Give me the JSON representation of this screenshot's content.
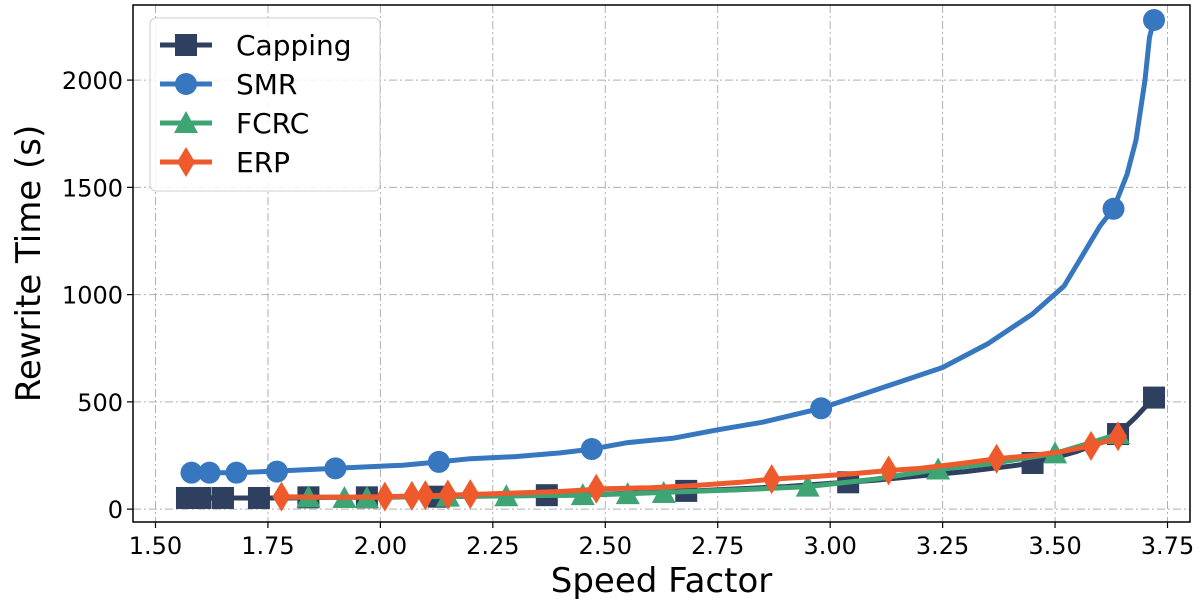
{
  "chart_data": {
    "type": "line",
    "title": "",
    "xlabel": "Speed Factor",
    "ylabel": "Rewrite Time (s)",
    "xlim": [
      1.5,
      3.75
    ],
    "ylim": [
      0,
      2300
    ],
    "xticks": [
      "1.50",
      "1.75",
      "2.00",
      "2.25",
      "2.50",
      "2.75",
      "3.00",
      "3.25",
      "3.50",
      "3.75"
    ],
    "yticks": [
      "0",
      "500",
      "1000",
      "1500",
      "2000"
    ],
    "grid": true,
    "legend_position": "upper-left",
    "series": [
      {
        "name": "Capping",
        "color": "#2f3f5f",
        "marker": "square",
        "line": [
          [
            1.57,
            52
          ],
          [
            1.62,
            52
          ],
          [
            1.7,
            52
          ],
          [
            1.8,
            52
          ],
          [
            1.9,
            55
          ],
          [
            2.0,
            55
          ],
          [
            2.1,
            58
          ],
          [
            2.2,
            60
          ],
          [
            2.3,
            62
          ],
          [
            2.4,
            65
          ],
          [
            2.5,
            70
          ],
          [
            2.6,
            78
          ],
          [
            2.7,
            85
          ],
          [
            2.8,
            95
          ],
          [
            2.9,
            105
          ],
          [
            3.0,
            120
          ],
          [
            3.1,
            135
          ],
          [
            3.2,
            155
          ],
          [
            3.3,
            175
          ],
          [
            3.4,
            200
          ],
          [
            3.45,
            215
          ],
          [
            3.5,
            240
          ],
          [
            3.55,
            270
          ],
          [
            3.6,
            310
          ],
          [
            3.64,
            350
          ],
          [
            3.68,
            430
          ],
          [
            3.72,
            520
          ]
        ],
        "points": [
          [
            1.57,
            52
          ],
          [
            1.6,
            52
          ],
          [
            1.65,
            52
          ],
          [
            1.73,
            52
          ],
          [
            1.84,
            55
          ],
          [
            1.97,
            55
          ],
          [
            2.13,
            58
          ],
          [
            2.37,
            65
          ],
          [
            2.68,
            85
          ],
          [
            3.04,
            125
          ],
          [
            3.45,
            215
          ],
          [
            3.64,
            350
          ],
          [
            3.72,
            520
          ]
        ]
      },
      {
        "name": "SMR",
        "color": "#3777c0",
        "marker": "circle",
        "line": [
          [
            1.58,
            170
          ],
          [
            1.68,
            170
          ],
          [
            1.78,
            178
          ],
          [
            1.85,
            185
          ],
          [
            1.95,
            195
          ],
          [
            2.0,
            200
          ],
          [
            2.05,
            205
          ],
          [
            2.13,
            220
          ],
          [
            2.2,
            235
          ],
          [
            2.3,
            245
          ],
          [
            2.4,
            262
          ],
          [
            2.47,
            280
          ],
          [
            2.55,
            310
          ],
          [
            2.65,
            330
          ],
          [
            2.75,
            370
          ],
          [
            2.85,
            405
          ],
          [
            2.92,
            440
          ],
          [
            2.98,
            470
          ],
          [
            3.05,
            520
          ],
          [
            3.15,
            590
          ],
          [
            3.25,
            660
          ],
          [
            3.35,
            770
          ],
          [
            3.45,
            910
          ],
          [
            3.52,
            1040
          ],
          [
            3.56,
            1180
          ],
          [
            3.6,
            1320
          ],
          [
            3.63,
            1400
          ],
          [
            3.66,
            1560
          ],
          [
            3.68,
            1720
          ],
          [
            3.7,
            2000
          ],
          [
            3.71,
            2200
          ],
          [
            3.72,
            2280
          ]
        ],
        "points": [
          [
            1.58,
            170
          ],
          [
            1.62,
            170
          ],
          [
            1.68,
            170
          ],
          [
            1.77,
            175
          ],
          [
            1.9,
            190
          ],
          [
            2.13,
            220
          ],
          [
            2.47,
            280
          ],
          [
            2.98,
            470
          ],
          [
            3.63,
            1400
          ],
          [
            3.72,
            2280
          ]
        ]
      },
      {
        "name": "FCRC",
        "color": "#3ea474",
        "marker": "triangle",
        "line": [
          [
            1.78,
            55
          ],
          [
            1.84,
            55
          ],
          [
            1.92,
            55
          ],
          [
            2.0,
            55
          ],
          [
            2.1,
            58
          ],
          [
            2.2,
            60
          ],
          [
            2.28,
            62
          ],
          [
            2.45,
            65
          ],
          [
            2.55,
            72
          ],
          [
            2.63,
            78
          ],
          [
            2.8,
            90
          ],
          [
            2.95,
            105
          ],
          [
            3.1,
            140
          ],
          [
            3.24,
            185
          ],
          [
            3.35,
            210
          ],
          [
            3.5,
            260
          ],
          [
            3.58,
            310
          ],
          [
            3.64,
            350
          ]
        ],
        "points": [
          [
            1.84,
            55
          ],
          [
            1.92,
            52
          ],
          [
            1.97,
            52
          ],
          [
            2.15,
            58
          ],
          [
            2.28,
            60
          ],
          [
            2.45,
            65
          ],
          [
            2.55,
            70
          ],
          [
            2.63,
            75
          ],
          [
            2.95,
            105
          ],
          [
            3.24,
            185
          ],
          [
            3.5,
            260
          ],
          [
            3.64,
            350
          ]
        ]
      },
      {
        "name": "ERP",
        "color": "#ee5a2c",
        "marker": "diamond",
        "line": [
          [
            1.78,
            58
          ],
          [
            1.9,
            55
          ],
          [
            2.0,
            58
          ],
          [
            2.1,
            62
          ],
          [
            2.2,
            68
          ],
          [
            2.3,
            75
          ],
          [
            2.4,
            82
          ],
          [
            2.5,
            95
          ],
          [
            2.6,
            100
          ],
          [
            2.7,
            110
          ],
          [
            2.8,
            125
          ],
          [
            2.87,
            140
          ],
          [
            2.95,
            150
          ],
          [
            3.05,
            165
          ],
          [
            3.13,
            180
          ],
          [
            3.2,
            190
          ],
          [
            3.3,
            215
          ],
          [
            3.37,
            235
          ],
          [
            3.45,
            250
          ],
          [
            3.52,
            270
          ],
          [
            3.58,
            295
          ],
          [
            3.62,
            320
          ],
          [
            3.64,
            340
          ]
        ],
        "points": [
          [
            1.78,
            58
          ],
          [
            2.01,
            58
          ],
          [
            2.07,
            62
          ],
          [
            2.1,
            65
          ],
          [
            2.15,
            68
          ],
          [
            2.2,
            70
          ],
          [
            2.48,
            95
          ],
          [
            2.87,
            140
          ],
          [
            3.13,
            180
          ],
          [
            3.37,
            235
          ],
          [
            3.58,
            295
          ],
          [
            3.64,
            340
          ]
        ]
      }
    ]
  }
}
